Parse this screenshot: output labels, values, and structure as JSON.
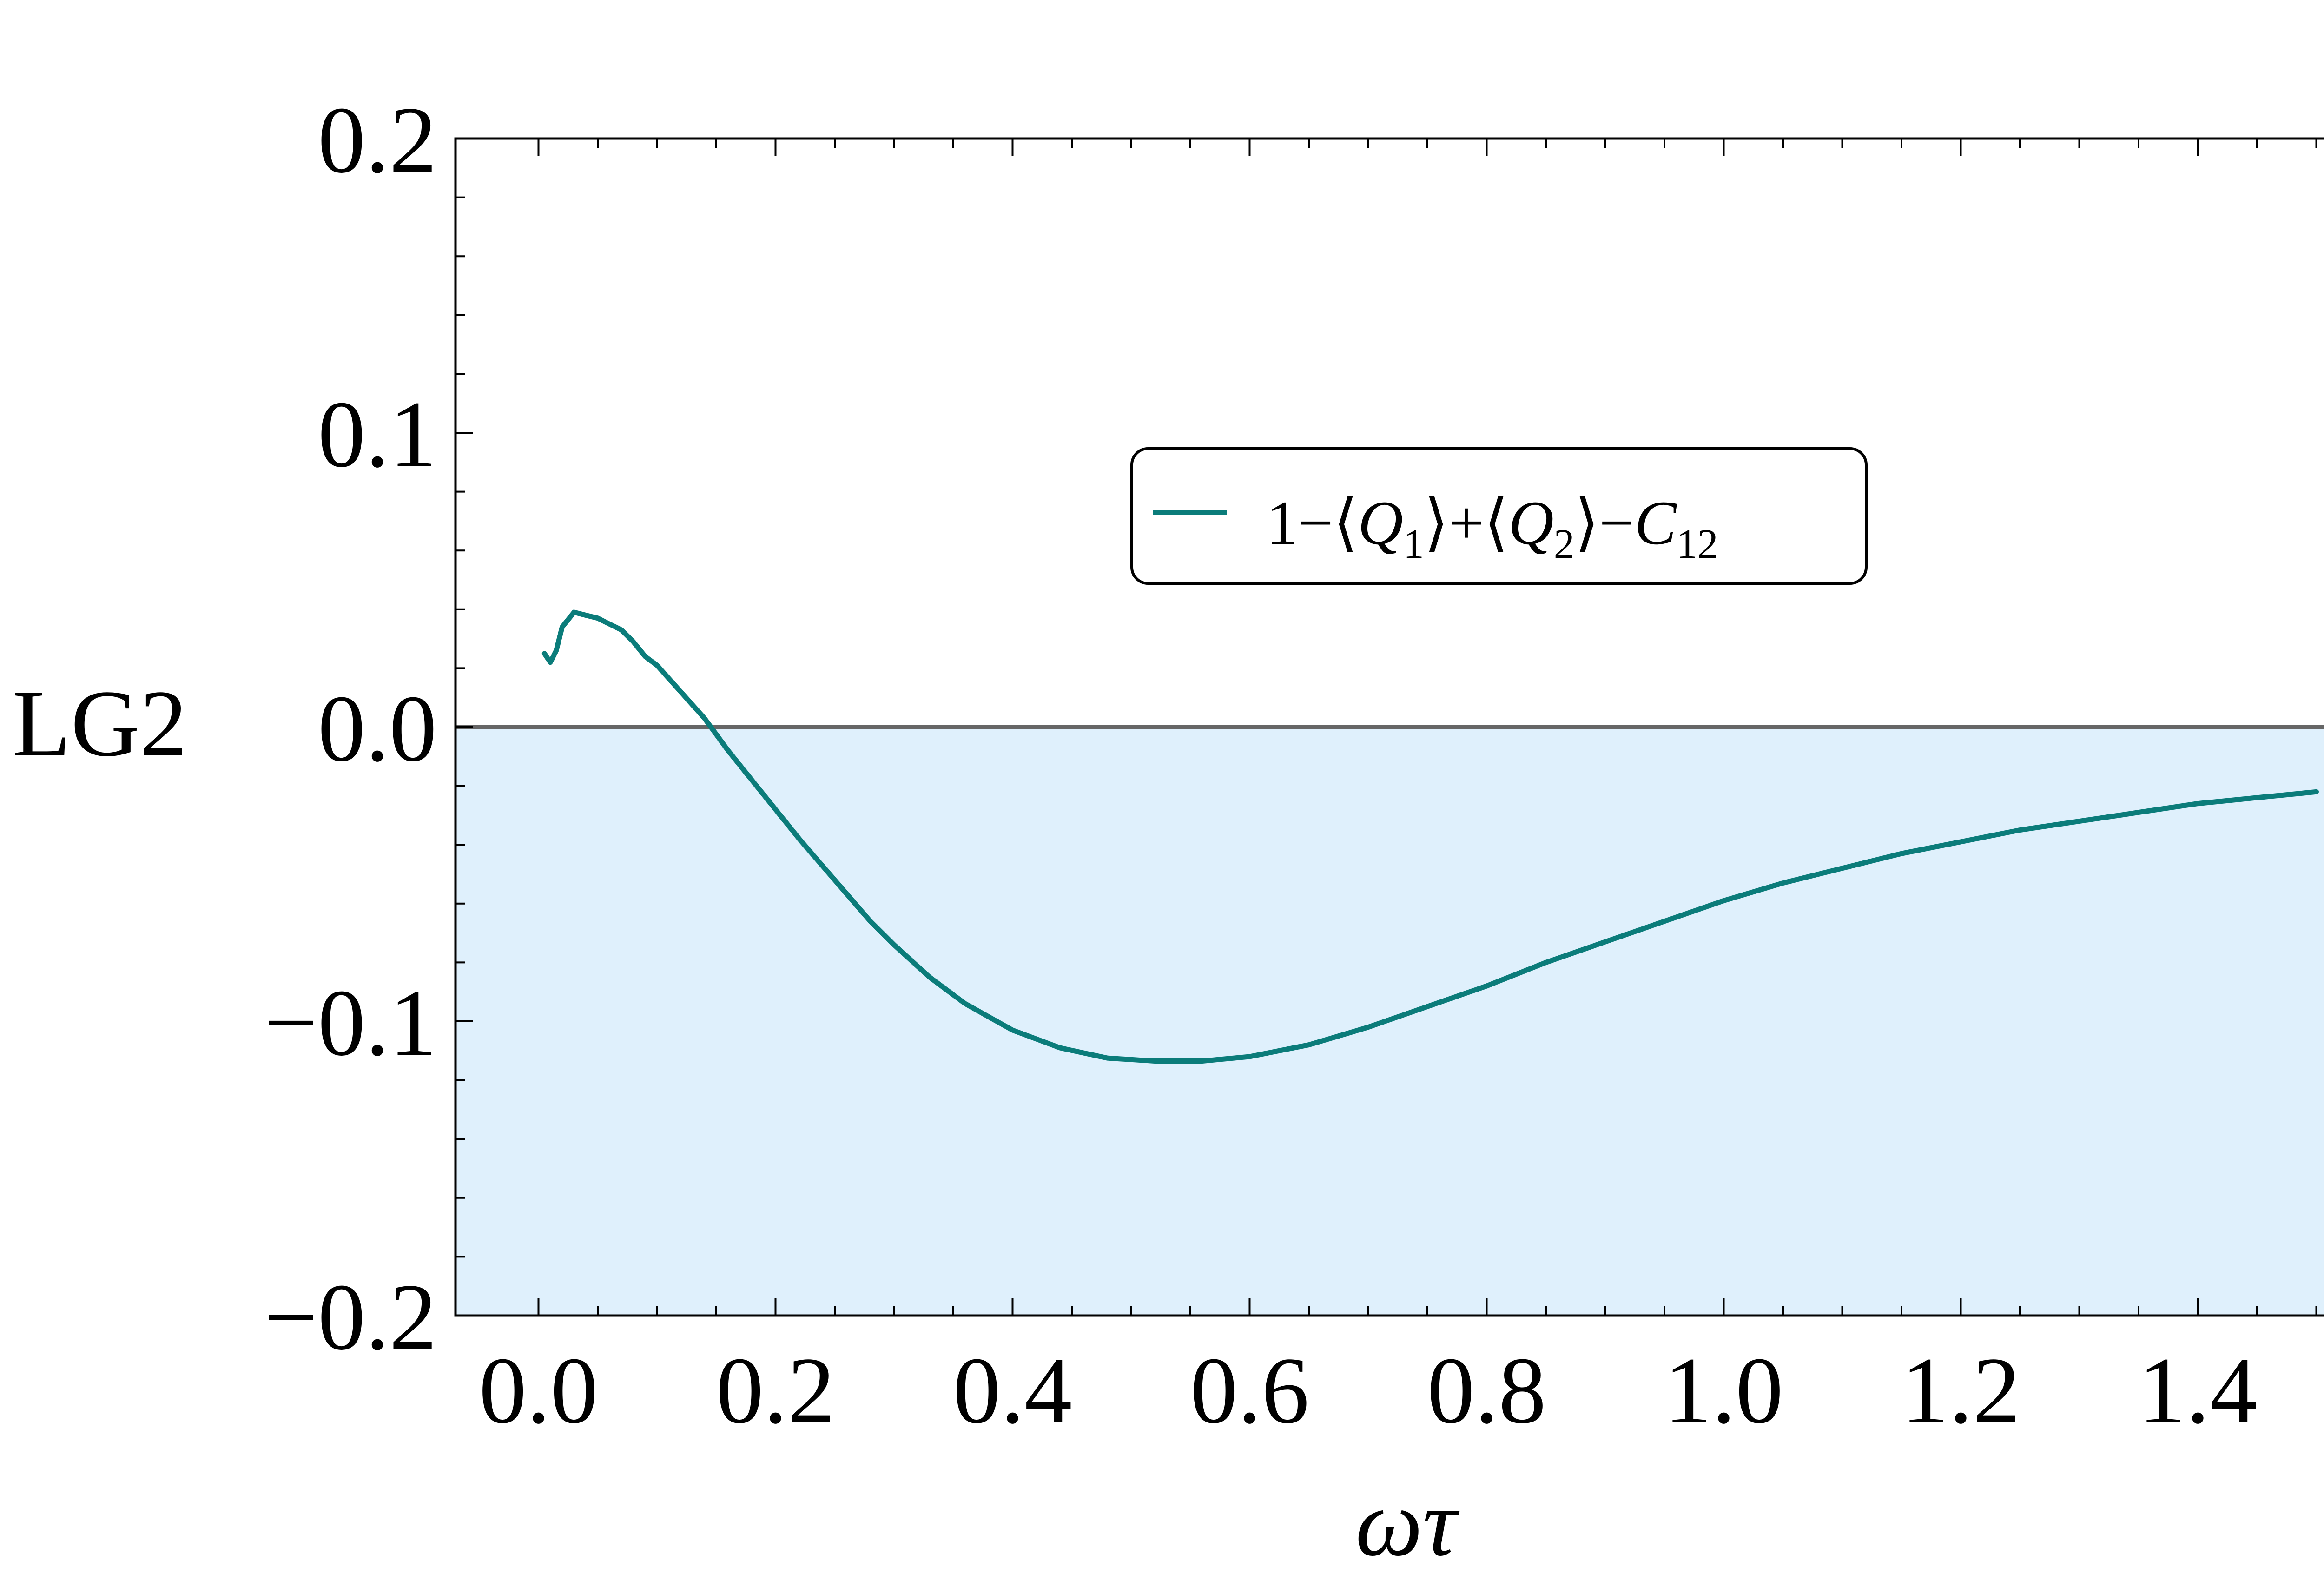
{
  "chart_data": {
    "type": "line",
    "title": "",
    "xlabel": "ωτ",
    "ylabel": "LG2",
    "xlim": [
      -0.07,
      1.53
    ],
    "ylim": [
      -0.2,
      0.2
    ],
    "x_ticks": [
      "0.0",
      "0.2",
      "0.4",
      "0.6",
      "0.8",
      "1.0",
      "1.2",
      "1.4"
    ],
    "x_tick_values": [
      0.0,
      0.2,
      0.4,
      0.6,
      0.8,
      1.0,
      1.2,
      1.4
    ],
    "y_ticks": [
      "0.2",
      "0.1",
      "0.0",
      "−0.1",
      "−0.2"
    ],
    "y_tick_values": [
      0.2,
      0.1,
      0.0,
      -0.1,
      -0.2
    ],
    "grid": false,
    "legend_position": "upper-center-right",
    "shaded_region": {
      "from": -0.2,
      "to": 0.0,
      "color": "#dff0fc"
    },
    "reference_line": {
      "y": 0.0,
      "color": "#666666"
    },
    "series": [
      {
        "name": "1−⟨Q1⟩+⟨Q2⟩−C12",
        "color": "#0b7c7a",
        "x": [
          0.005,
          0.01,
          0.015,
          0.02,
          0.03,
          0.04,
          0.05,
          0.06,
          0.07,
          0.08,
          0.09,
          0.1,
          0.12,
          0.14,
          0.16,
          0.18,
          0.2,
          0.22,
          0.25,
          0.28,
          0.3,
          0.33,
          0.36,
          0.4,
          0.44,
          0.48,
          0.52,
          0.56,
          0.6,
          0.65,
          0.7,
          0.75,
          0.8,
          0.85,
          0.9,
          0.95,
          1.0,
          1.05,
          1.1,
          1.15,
          1.2,
          1.25,
          1.3,
          1.35,
          1.4,
          1.45,
          1.5
        ],
        "y": [
          0.025,
          0.022,
          0.026,
          0.034,
          0.039,
          0.038,
          0.037,
          0.035,
          0.033,
          0.029,
          0.024,
          0.021,
          0.012,
          0.003,
          -0.008,
          -0.018,
          -0.028,
          -0.038,
          -0.052,
          -0.066,
          -0.074,
          -0.085,
          -0.094,
          -0.103,
          -0.109,
          -0.1125,
          -0.1135,
          -0.1135,
          -0.112,
          -0.108,
          -0.102,
          -0.095,
          -0.088,
          -0.08,
          -0.073,
          -0.066,
          -0.059,
          -0.053,
          -0.048,
          -0.043,
          -0.039,
          -0.035,
          -0.032,
          -0.029,
          -0.026,
          -0.024,
          -0.022
        ]
      }
    ]
  }
}
